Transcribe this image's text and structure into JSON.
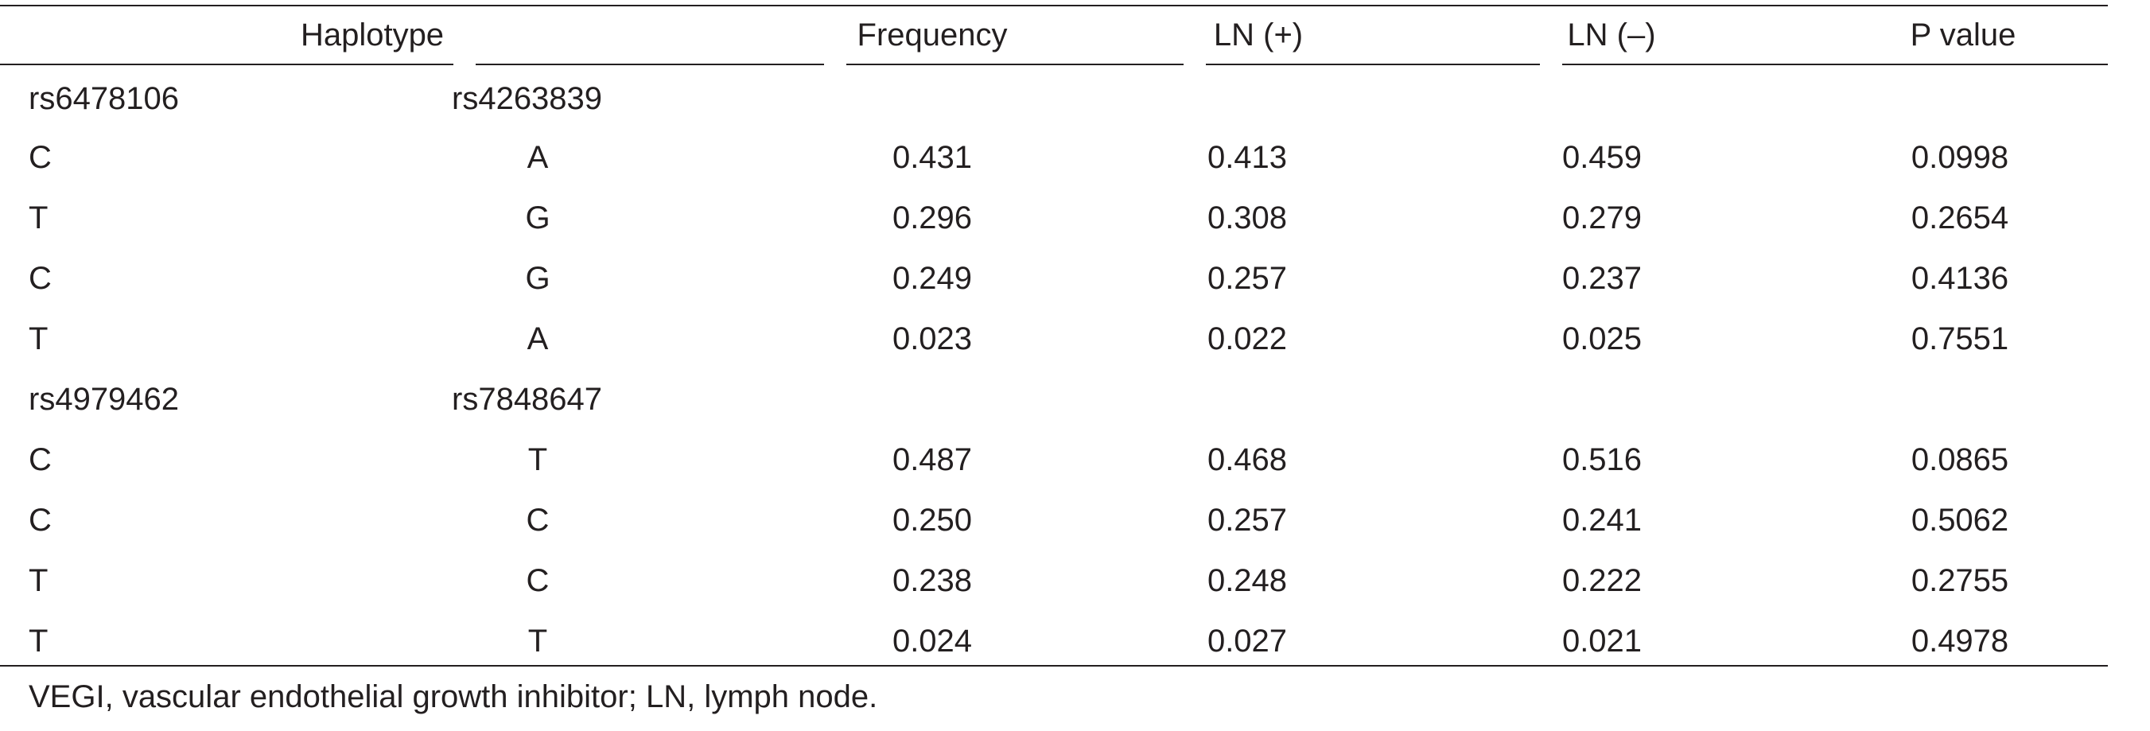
{
  "table": {
    "headers": {
      "haplotype": "Haplotype",
      "frequency": "Frequency",
      "ln_pos": "LN (+)",
      "ln_neg": "LN (–)",
      "p_value": "P value"
    },
    "groups": [
      {
        "snp1": "rs6478106",
        "snp2": "rs4263839",
        "rows": [
          {
            "a": "C",
            "b": "A",
            "freq": "0.431",
            "lnp": "0.413",
            "lnn": "0.459",
            "p": "0.0998"
          },
          {
            "a": "T",
            "b": "G",
            "freq": "0.296",
            "lnp": "0.308",
            "lnn": "0.279",
            "p": "0.2654"
          },
          {
            "a": "C",
            "b": "G",
            "freq": "0.249",
            "lnp": "0.257",
            "lnn": "0.237",
            "p": "0.4136"
          },
          {
            "a": "T",
            "b": "A",
            "freq": "0.023",
            "lnp": "0.022",
            "lnn": "0.025",
            "p": "0.7551"
          }
        ]
      },
      {
        "snp1": "rs4979462",
        "snp2": "rs7848647",
        "rows": [
          {
            "a": "C",
            "b": "T",
            "freq": "0.487",
            "lnp": "0.468",
            "lnn": "0.516",
            "p": "0.0865"
          },
          {
            "a": "C",
            "b": "C",
            "freq": "0.250",
            "lnp": "0.257",
            "lnn": "0.241",
            "p": "0.5062"
          },
          {
            "a": "T",
            "b": "C",
            "freq": "0.238",
            "lnp": "0.248",
            "lnn": "0.222",
            "p": "0.2755"
          },
          {
            "a": "T",
            "b": "T",
            "freq": "0.024",
            "lnp": "0.027",
            "lnn": "0.021",
            "p": "0.4978"
          }
        ]
      }
    ],
    "footnote": "VEGI, vascular endothelial growth inhibitor; LN, lymph node."
  }
}
